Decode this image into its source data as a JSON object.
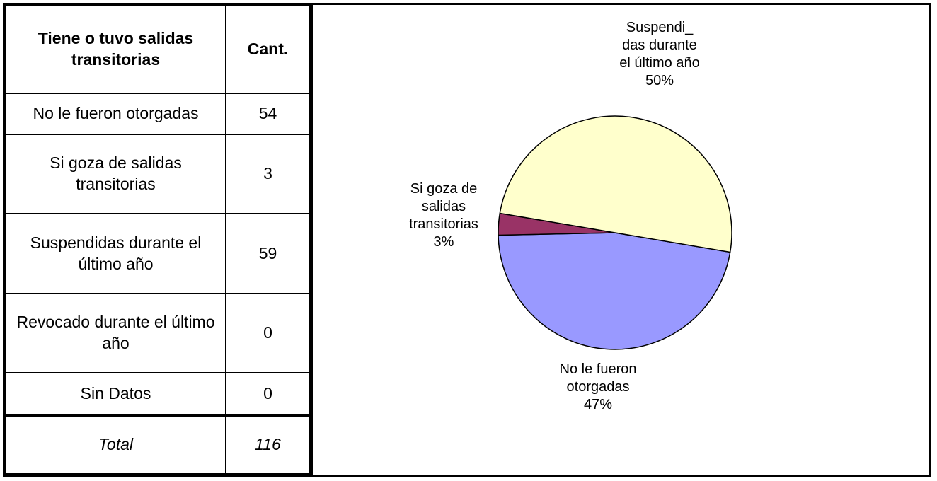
{
  "table": {
    "header": [
      "Tiene o tuvo salidas transitorias",
      "Cant."
    ],
    "rows": [
      [
        "No le fueron otorgadas",
        54
      ],
      [
        "Si goza de salidas transitorias",
        3
      ],
      [
        "Suspendidas durante el último año",
        59
      ],
      [
        "Revocado durante el último año",
        0
      ],
      [
        "Sin Datos",
        0
      ]
    ],
    "total": [
      "Total",
      116
    ]
  },
  "chart_data": {
    "type": "pie",
    "categories": [
      "No le fueron\notorgadas",
      "Si goza de\nsalidas\ntransitorias",
      "Suspendi_\ndas durante\nel último año"
    ],
    "values": [
      47,
      3,
      50
    ],
    "value_labels": [
      "47%",
      "3%",
      "50%"
    ],
    "colors": [
      "#9999ff",
      "#993366",
      "#ffffcc"
    ]
  }
}
